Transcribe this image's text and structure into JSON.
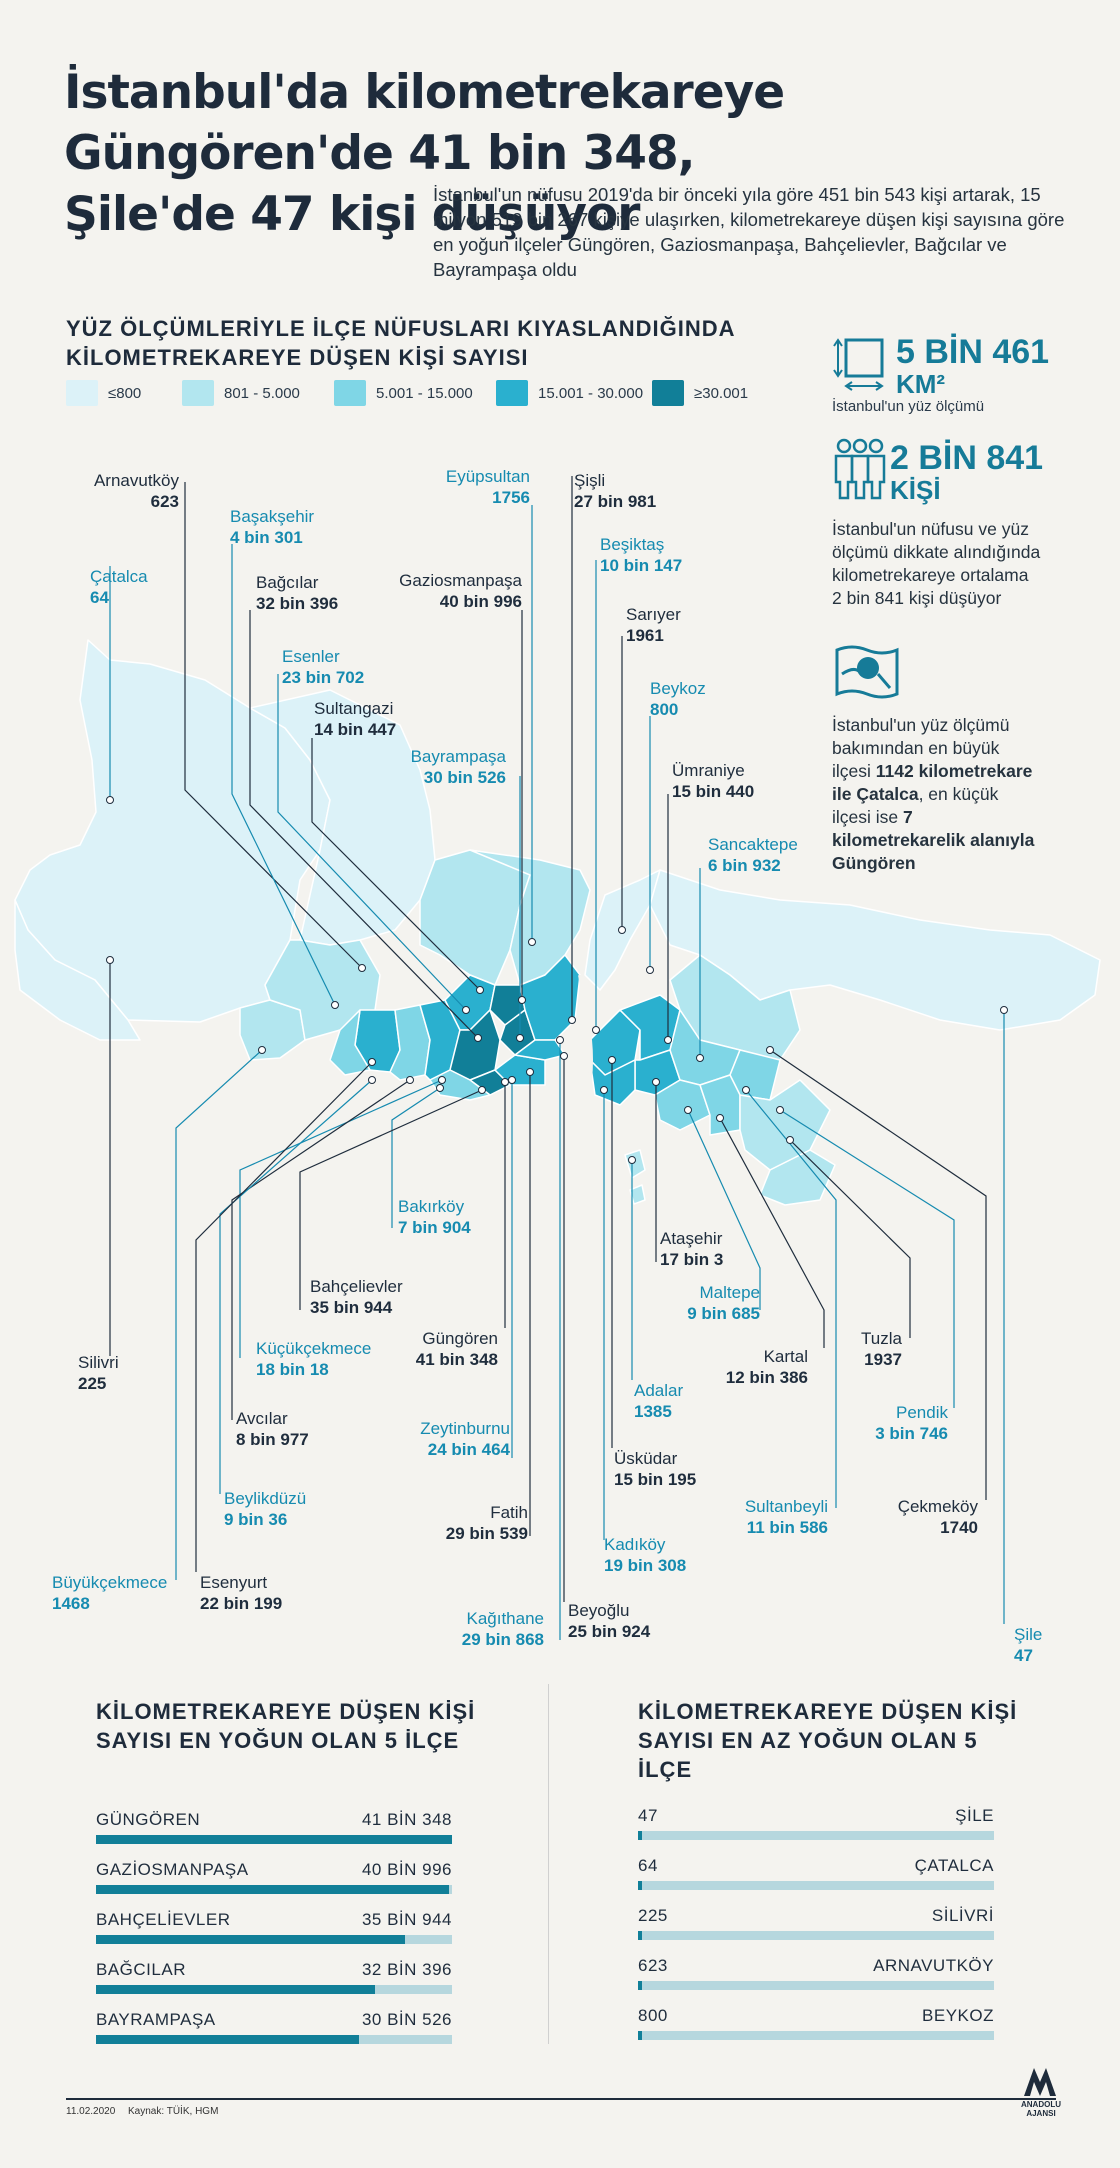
{
  "title": "İstanbul'da kilometrekareye Güngören'de 41 bin 348, Şile'de 47 kişi düşüyor",
  "intro": "İstanbul'un nüfusu 2019'da bir önceki yıla göre 451 bin 543 kişi artarak, 15 milyon 519 bin 267 kişiye ulaşırken, kilometrekareye düşen kişi sayısına göre en yoğun ilçeler Güngören, Gaziosmanpaşa, Bahçelievler, Bağcılar ve Bayrampaşa oldu",
  "map_subtitle": "YÜZ ÖLÇÜMLERİYLE İLÇE NÜFUSLARI KIYASLANDIĞINDA KİLOMETREKAREYE DÜŞEN KİŞİ SAYISI",
  "legend": [
    {
      "label": "≤800",
      "color": "#dcf2f8"
    },
    {
      "label": "801 - 5.000",
      "color": "#b2e6ef"
    },
    {
      "label": "5.001 - 15.000",
      "color": "#7fd6e6"
    },
    {
      "label": "15.001 - 30.000",
      "color": "#2ab0cf"
    },
    {
      "label": "≥30.001",
      "color": "#117f98"
    }
  ],
  "stats": {
    "area_value": "5 BİN 461",
    "area_unit": "KM²",
    "area_caption": "İstanbul'un yüz ölçümü",
    "density_value": "2 BİN 841",
    "density_unit": "KİŞİ",
    "density_text": "İstanbul'un nüfusu ve yüz ölçümü dikkate alındığında kilometrekareye ortalama 2 bin 841 kişi düşüyor",
    "largest_text_1": "İstanbul'un yüz ölçümü bakımından en büyük ilçesi ",
    "largest_bold_1": "1142 kilometrekare ile Çatalca",
    "largest_text_2": ", en küçük ilçesi ise ",
    "largest_bold_2": "7 kilometrekarelik alanıyla Güngören"
  },
  "districts": [
    {
      "name": "Arnavutköy",
      "value": "623"
    },
    {
      "name": "Başakşehir",
      "value": "4 bin 301"
    },
    {
      "name": "Çatalca",
      "value": "64"
    },
    {
      "name": "Bağcılar",
      "value": "32 bin 396"
    },
    {
      "name": "Esenler",
      "value": "23 bin 702"
    },
    {
      "name": "Sultangazi",
      "value": "14 bin 447"
    },
    {
      "name": "Eyüpsultan",
      "value": "1756"
    },
    {
      "name": "Şişli",
      "value": "27 bin 981"
    },
    {
      "name": "Beşiktaş",
      "value": "10 bin 147"
    },
    {
      "name": "Gaziosmanpaşa",
      "value": "40 bin 996"
    },
    {
      "name": "Sarıyer",
      "value": "1961"
    },
    {
      "name": "Beykoz",
      "value": "800"
    },
    {
      "name": "Bayrampaşa",
      "value": "30 bin 526"
    },
    {
      "name": "Ümraniye",
      "value": "15 bin 440"
    },
    {
      "name": "Sancaktepe",
      "value": "6 bin 932"
    },
    {
      "name": "Bakırköy",
      "value": "7 bin 904"
    },
    {
      "name": "Ataşehir",
      "value": "17 bin 3"
    },
    {
      "name": "Bahçelievler",
      "value": "35 bin 944"
    },
    {
      "name": "Maltepe",
      "value": "9 bin 685"
    },
    {
      "name": "Küçükçekmece",
      "value": "18 bin 18"
    },
    {
      "name": "Güngören",
      "value": "41 bin 348"
    },
    {
      "name": "Kartal",
      "value": "12 bin 386"
    },
    {
      "name": "Tuzla",
      "value": "1937"
    },
    {
      "name": "Silivri",
      "value": "225"
    },
    {
      "name": "Avcılar",
      "value": "8 bin 977"
    },
    {
      "name": "Zeytinburnu",
      "value": "24 bin 464"
    },
    {
      "name": "Adalar",
      "value": "1385"
    },
    {
      "name": "Pendik",
      "value": "3 bin 746"
    },
    {
      "name": "Üsküdar",
      "value": "15 bin 195"
    },
    {
      "name": "Beylikdüzü",
      "value": "9 bin 36"
    },
    {
      "name": "Fatih",
      "value": "29 bin 539"
    },
    {
      "name": "Sultanbeyli",
      "value": "11 bin 586"
    },
    {
      "name": "Çekmeköy",
      "value": "1740"
    },
    {
      "name": "Kadıköy",
      "value": "19 bin 308"
    },
    {
      "name": "Büyükçekmece",
      "value": "1468"
    },
    {
      "name": "Esenyurt",
      "value": "22 bin 199"
    },
    {
      "name": "Kağıthane",
      "value": "29 bin 868"
    },
    {
      "name": "Beyoğlu",
      "value": "25 bin 924"
    },
    {
      "name": "Şile",
      "value": "47"
    }
  ],
  "top5": {
    "title": "KİLOMETREKAREYE DÜŞEN KİŞİ SAYISI EN YOĞUN OLAN 5 İLÇE",
    "items": [
      {
        "name": "GÜNGÖREN",
        "label": "41 BİN 348",
        "value": 41348
      },
      {
        "name": "GAZİOSMANPAŞA",
        "label": "40 BİN 996",
        "value": 40996
      },
      {
        "name": "BAHÇELİEVLER",
        "label": "35 BİN 944",
        "value": 35944
      },
      {
        "name": "BAĞCILAR",
        "label": "32 BİN 396",
        "value": 32396
      },
      {
        "name": "BAYRAMPAŞA",
        "label": "30 BİN 526",
        "value": 30526
      }
    ]
  },
  "bottom5": {
    "title": "KİLOMETREKAREYE DÜŞEN KİŞİ SAYISI EN AZ YOĞUN OLAN 5 İLÇE",
    "items": [
      {
        "name": "ŞİLE",
        "label": "47",
        "value": 47
      },
      {
        "name": "ÇATALCA",
        "label": "64",
        "value": 64
      },
      {
        "name": "SİLİVRİ",
        "label": "225",
        "value": 225
      },
      {
        "name": "ARNAVUTKÖY",
        "label": "623",
        "value": 623
      },
      {
        "name": "BEYKOZ",
        "label": "800",
        "value": 800
      }
    ]
  },
  "footer": {
    "date": "11.02.2020",
    "source": "Kaynak: TÜİK, HGM",
    "logo_line1": "ANADOLU",
    "logo_line2": "AJANSI"
  },
  "colors": {
    "teal_dark": "#117f98",
    "teal_text": "#168bb0",
    "bar_track": "#b6d7de"
  }
}
